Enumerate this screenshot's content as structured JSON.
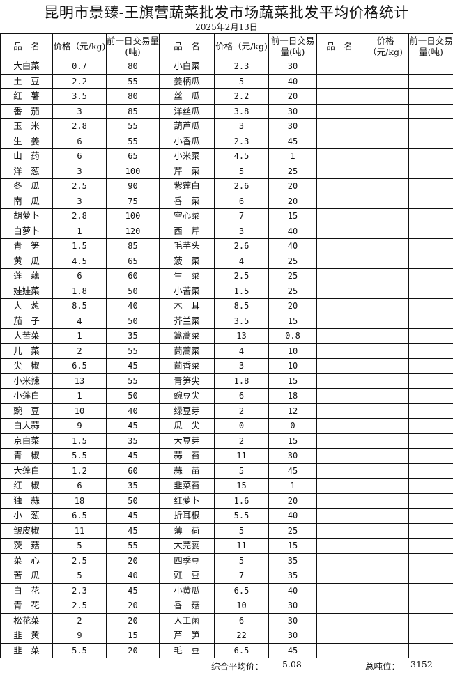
{
  "title": "昆明市景臻-王旗营蔬菜批发市场蔬菜批发平均价格统计",
  "date": "2025年2月13日",
  "headers": [
    "品　名",
    "价格（元/kg)",
    "前一日交易量(吨)",
    "品　名",
    "价格（元/kg)",
    "前一日交易量(吨)",
    "品　名",
    "价格（元/kg)",
    "前一日交易量(吨)"
  ],
  "rows": [
    [
      "大白菜",
      "0.7",
      "80",
      "小白菜",
      "2.3",
      "30"
    ],
    [
      "土　豆",
      "2.2",
      "55",
      "姜柄瓜",
      "5",
      "40"
    ],
    [
      "红　薯",
      "3.5",
      "80",
      "丝　瓜",
      "2.2",
      "20"
    ],
    [
      "番　茄",
      "3",
      "85",
      "洋丝瓜",
      "3.8",
      "30"
    ],
    [
      "玉　米",
      "2.8",
      "55",
      "葫芦瓜",
      "3",
      "30"
    ],
    [
      "生　姜",
      "6",
      "55",
      "小香瓜",
      "2.3",
      "45"
    ],
    [
      "山　药",
      "6",
      "65",
      "小米菜",
      "4.5",
      "1"
    ],
    [
      "洋　葱",
      "3",
      "100",
      "芹　菜",
      "5",
      "25"
    ],
    [
      "冬　瓜",
      "2.5",
      "90",
      "紫莲白",
      "2.6",
      "20"
    ],
    [
      "南　瓜",
      "3",
      "75",
      "香　菜",
      "6",
      "20"
    ],
    [
      "胡萝卜",
      "2.8",
      "100",
      "空心菜",
      "7",
      "15"
    ],
    [
      "白萝卜",
      "1",
      "120",
      "西　芹",
      "3",
      "40"
    ],
    [
      "青　笋",
      "1.5",
      "85",
      "毛芋头",
      "2.6",
      "40"
    ],
    [
      "黄　瓜",
      "4.5",
      "65",
      "菠　菜",
      "4",
      "25"
    ],
    [
      "莲　藕",
      "6",
      "60",
      "生　菜",
      "2.5",
      "25"
    ],
    [
      "娃娃菜",
      "1.8",
      "50",
      "小苦菜",
      "1.5",
      "25"
    ],
    [
      "大　葱",
      "8.5",
      "40",
      "木　耳",
      "8.5",
      "20"
    ],
    [
      "茄　子",
      "4",
      "50",
      "芥兰菜",
      "3.5",
      "15"
    ],
    [
      "大苦菜",
      "1",
      "35",
      "篙蒿菜",
      "13",
      "0.8"
    ],
    [
      "儿　菜",
      "2",
      "55",
      "茼蒿菜",
      "4",
      "10"
    ],
    [
      "尖　椒",
      "6.5",
      "45",
      "茴香菜",
      "3",
      "10"
    ],
    [
      "小米辣",
      "13",
      "55",
      "青笋尖",
      "1.8",
      "15"
    ],
    [
      "小莲白",
      "1",
      "50",
      "豌豆尖",
      "6",
      "18"
    ],
    [
      "豌　豆",
      "10",
      "40",
      "绿豆芽",
      "2",
      "12"
    ],
    [
      "白大蒜",
      "9",
      "45",
      "瓜　尖",
      "0",
      "0"
    ],
    [
      "京白菜",
      "1.5",
      "35",
      "大豆芽",
      "2",
      "15"
    ],
    [
      "青　椒",
      "5.5",
      "45",
      "蒜　苔",
      "11",
      "30"
    ],
    [
      "大莲白",
      "1.2",
      "60",
      "蒜　苗",
      "5",
      "45"
    ],
    [
      "红　椒",
      "6",
      "35",
      "韭菜苔",
      "15",
      "1"
    ],
    [
      "独　蒜",
      "18",
      "50",
      "红萝卜",
      "1.6",
      "20"
    ],
    [
      "小　葱",
      "6.5",
      "45",
      "折耳根",
      "5.5",
      "40"
    ],
    [
      "皱皮椒",
      "11",
      "45",
      "薄　荷",
      "5",
      "25"
    ],
    [
      "茨　菇",
      "5",
      "55",
      "大芫荽",
      "11",
      "15"
    ],
    [
      "菜　心",
      "2.5",
      "20",
      "四季豆",
      "5",
      "35"
    ],
    [
      "苦　瓜",
      "5",
      "40",
      "豇　豆",
      "7",
      "35"
    ],
    [
      "白　花",
      "2.3",
      "45",
      "小黄瓜",
      "6.5",
      "40"
    ],
    [
      "青　花",
      "2.5",
      "20",
      "香　菇",
      "10",
      "30"
    ],
    [
      "松花菜",
      "2",
      "20",
      "人工菌",
      "6",
      "30"
    ],
    [
      "韭　黄",
      "9",
      "15",
      "芦　笋",
      "22",
      "30"
    ],
    [
      "韭　菜",
      "5.5",
      "20",
      "毛　豆",
      "6.5",
      "45"
    ]
  ],
  "footer": {
    "avg_label": "综合平均价：",
    "avg_value": "5.08",
    "total_label": "总吨位：",
    "total_value": "3152"
  }
}
